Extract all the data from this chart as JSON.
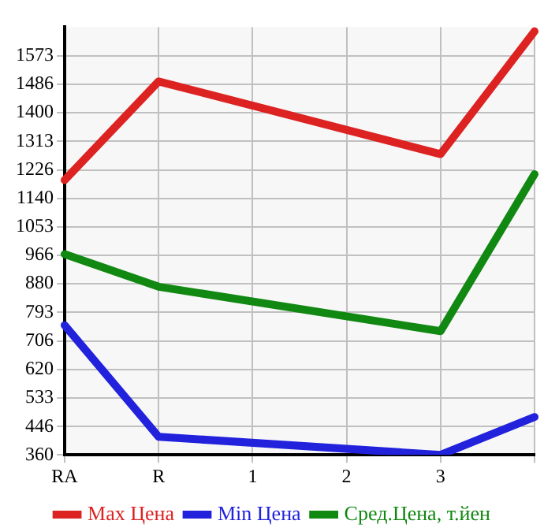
{
  "chart_data": {
    "type": "line",
    "categories": [
      "RA",
      "R",
      "1",
      "2",
      "3",
      null
    ],
    "series": [
      {
        "name": "Max Цена",
        "color": "#dd2222",
        "values": [
          1195,
          1495,
          null,
          null,
          1274,
          1647
        ]
      },
      {
        "name": "Min Цена",
        "color": "#2222dd",
        "values": [
          754,
          415,
          null,
          null,
          360,
          475
        ]
      },
      {
        "name": "Сред.Цена, т.йен",
        "color": "#118811",
        "values": [
          970,
          871,
          null,
          null,
          736,
          1213
        ]
      }
    ],
    "ylim": [
      360,
      1660
    ],
    "yticks": [
      360,
      446,
      533,
      620,
      706,
      793,
      880,
      966,
      1053,
      1140,
      1226,
      1313,
      1400,
      1486,
      1573
    ],
    "grid": true,
    "legend": "bottom",
    "marker": "none",
    "line_style": "solid"
  }
}
